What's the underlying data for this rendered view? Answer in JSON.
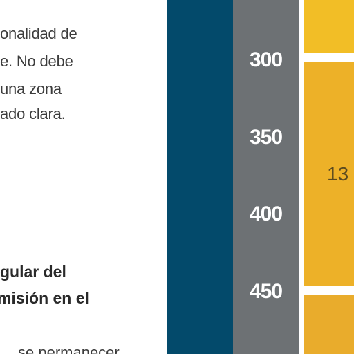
{
  "text": {
    "paragraph_lines": [
      "onalidad de",
      "e. No debe",
      "una zona",
      "ado clara."
    ],
    "heading_lines": [
      "gular del",
      "misión en el"
    ],
    "cut_line": "se permanecer"
  },
  "scale": {
    "values": [
      "300",
      "350",
      "400",
      "450"
    ]
  },
  "block": {
    "label": "13"
  },
  "colors": {
    "blue_band": "#034a6b",
    "gray_band": "#6d7174",
    "yellow_top": "#f2be26",
    "yellow_mid": "#edb128",
    "yellow_bottom": "#e9ac2c"
  }
}
